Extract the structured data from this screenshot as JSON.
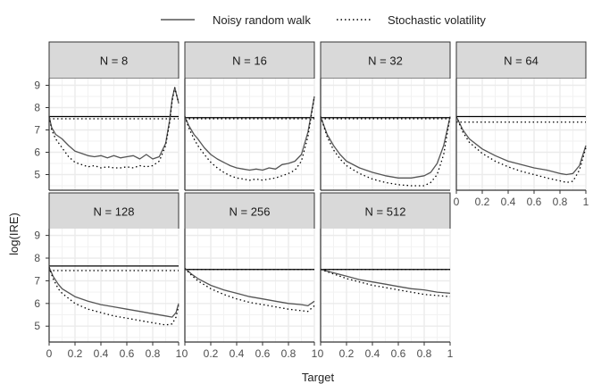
{
  "chart_data": {
    "type": "line",
    "xlabel": "Target",
    "ylabel": "log(IRE)",
    "xlim": [
      0,
      1
    ],
    "ylim": [
      4.3,
      9.3
    ],
    "x_ticks": [
      0,
      0.2,
      0.4,
      0.6,
      0.8,
      1
    ],
    "x_tick_labels": [
      "0",
      "0.2",
      "0.4",
      "0.6",
      "0.8",
      "1"
    ],
    "y_ticks": [
      5,
      6,
      7,
      8,
      9
    ],
    "y_tick_labels": [
      "5",
      "6",
      "7",
      "8",
      "9"
    ],
    "grid": true,
    "legend": {
      "position": "top",
      "entries": [
        {
          "label": "Noisy random walk",
          "style": "solid"
        },
        {
          "label": "Stochastic volatility",
          "style": "dotted"
        }
      ]
    },
    "colors": {
      "noisy": "#555555",
      "stoch": "#000000",
      "reference": "#000000",
      "strip": "#d9d9d9",
      "grid": "#ebebeb"
    },
    "facets": [
      {
        "label": "N = 8",
        "reference": 7.6,
        "reference_dotted": 7.5,
        "series": [
          {
            "name": "Noisy random walk",
            "x": [
              0,
              0.02,
              0.05,
              0.1,
              0.15,
              0.2,
              0.25,
              0.3,
              0.35,
              0.4,
              0.45,
              0.5,
              0.55,
              0.6,
              0.65,
              0.7,
              0.75,
              0.8,
              0.85,
              0.9,
              0.93,
              0.95,
              0.97,
              1.0
            ],
            "y": [
              7.6,
              7.1,
              6.8,
              6.6,
              6.3,
              6.05,
              5.95,
              5.85,
              5.8,
              5.85,
              5.75,
              5.85,
              5.75,
              5.8,
              5.85,
              5.7,
              5.9,
              5.7,
              5.8,
              6.4,
              7.4,
              8.4,
              8.9,
              8.2
            ]
          },
          {
            "name": "Stochastic volatility",
            "x": [
              0,
              0.02,
              0.05,
              0.1,
              0.15,
              0.2,
              0.25,
              0.3,
              0.35,
              0.4,
              0.45,
              0.5,
              0.55,
              0.6,
              0.65,
              0.7,
              0.75,
              0.8,
              0.85,
              0.9,
              0.93,
              0.95,
              0.97,
              1.0
            ],
            "y": [
              7.6,
              7.0,
              6.6,
              6.2,
              5.8,
              5.55,
              5.45,
              5.35,
              5.4,
              5.3,
              5.35,
              5.3,
              5.3,
              5.35,
              5.3,
              5.4,
              5.35,
              5.4,
              5.6,
              6.3,
              7.3,
              8.3,
              8.9,
              8.2
            ]
          }
        ]
      },
      {
        "label": "N = 16",
        "reference": 7.55,
        "reference_dotted": 7.5,
        "series": [
          {
            "name": "Noisy random walk",
            "x": [
              0,
              0.03,
              0.07,
              0.1,
              0.15,
              0.2,
              0.25,
              0.3,
              0.35,
              0.4,
              0.45,
              0.5,
              0.55,
              0.6,
              0.65,
              0.7,
              0.75,
              0.8,
              0.85,
              0.9,
              0.95,
              1.0
            ],
            "y": [
              7.6,
              7.2,
              6.8,
              6.6,
              6.2,
              5.9,
              5.7,
              5.55,
              5.4,
              5.3,
              5.25,
              5.2,
              5.25,
              5.2,
              5.3,
              5.25,
              5.45,
              5.5,
              5.6,
              5.9,
              6.9,
              8.5
            ]
          },
          {
            "name": "Stochastic volatility",
            "x": [
              0,
              0.03,
              0.07,
              0.1,
              0.15,
              0.2,
              0.25,
              0.3,
              0.35,
              0.4,
              0.45,
              0.5,
              0.55,
              0.6,
              0.65,
              0.7,
              0.75,
              0.8,
              0.85,
              0.9,
              0.95,
              1.0
            ],
            "y": [
              7.6,
              7.1,
              6.6,
              6.3,
              5.9,
              5.55,
              5.3,
              5.1,
              4.95,
              4.85,
              4.8,
              4.75,
              4.8,
              4.75,
              4.8,
              4.85,
              4.95,
              5.05,
              5.2,
              5.6,
              6.7,
              8.5
            ]
          }
        ]
      },
      {
        "label": "N = 32",
        "reference": 7.55,
        "reference_dotted": 7.5,
        "series": [
          {
            "name": "Noisy random walk",
            "x": [
              0,
              0.05,
              0.1,
              0.15,
              0.2,
              0.3,
              0.4,
              0.5,
              0.6,
              0.7,
              0.8,
              0.85,
              0.9,
              0.95,
              1.0
            ],
            "y": [
              7.6,
              6.8,
              6.3,
              5.9,
              5.6,
              5.3,
              5.1,
              4.95,
              4.85,
              4.85,
              4.95,
              5.1,
              5.5,
              6.3,
              7.6
            ]
          },
          {
            "name": "Stochastic volatility",
            "x": [
              0,
              0.05,
              0.1,
              0.15,
              0.2,
              0.3,
              0.4,
              0.5,
              0.6,
              0.7,
              0.8,
              0.85,
              0.9,
              0.95,
              1.0
            ],
            "y": [
              7.6,
              6.7,
              6.1,
              5.7,
              5.4,
              5.05,
              4.8,
              4.65,
              4.55,
              4.5,
              4.5,
              4.65,
              5.0,
              5.9,
              7.6
            ]
          }
        ]
      },
      {
        "label": "N = 64",
        "reference": 7.6,
        "reference_dotted": 7.35,
        "series": [
          {
            "name": "Noisy random walk",
            "x": [
              0,
              0.05,
              0.1,
              0.2,
              0.3,
              0.4,
              0.5,
              0.6,
              0.7,
              0.8,
              0.85,
              0.9,
              0.95,
              1.0
            ],
            "y": [
              7.6,
              7.0,
              6.6,
              6.15,
              5.85,
              5.6,
              5.45,
              5.3,
              5.2,
              5.05,
              5.0,
              5.05,
              5.4,
              6.3
            ]
          },
          {
            "name": "Stochastic volatility",
            "x": [
              0,
              0.05,
              0.1,
              0.2,
              0.3,
              0.4,
              0.5,
              0.6,
              0.7,
              0.8,
              0.85,
              0.9,
              0.95,
              1.0
            ],
            "y": [
              7.6,
              6.9,
              6.45,
              5.95,
              5.6,
              5.35,
              5.15,
              5.0,
              4.85,
              4.72,
              4.65,
              4.7,
              5.2,
              6.2
            ]
          }
        ]
      },
      {
        "label": "N = 128",
        "reference": 7.65,
        "reference_dotted": 7.45,
        "series": [
          {
            "name": "Noisy random walk",
            "x": [
              0,
              0.03,
              0.07,
              0.1,
              0.2,
              0.3,
              0.4,
              0.5,
              0.6,
              0.7,
              0.8,
              0.9,
              0.95,
              0.98,
              1.0
            ],
            "y": [
              7.6,
              7.2,
              6.85,
              6.65,
              6.3,
              6.1,
              5.95,
              5.85,
              5.75,
              5.65,
              5.55,
              5.45,
              5.4,
              5.6,
              6.0
            ]
          },
          {
            "name": "Stochastic volatility",
            "x": [
              0,
              0.03,
              0.07,
              0.1,
              0.2,
              0.3,
              0.4,
              0.5,
              0.6,
              0.7,
              0.8,
              0.9,
              0.95,
              0.98,
              1.0
            ],
            "y": [
              7.6,
              7.1,
              6.65,
              6.45,
              6.0,
              5.75,
              5.6,
              5.45,
              5.35,
              5.25,
              5.15,
              5.05,
              5.1,
              5.4,
              5.9
            ]
          }
        ]
      },
      {
        "label": "N = 256",
        "reference": 7.5,
        "reference_dotted": 7.5,
        "series": [
          {
            "name": "Noisy random walk",
            "x": [
              0,
              0.05,
              0.1,
              0.2,
              0.3,
              0.4,
              0.5,
              0.6,
              0.7,
              0.8,
              0.9,
              0.95,
              1.0
            ],
            "y": [
              7.55,
              7.3,
              7.1,
              6.8,
              6.6,
              6.45,
              6.3,
              6.2,
              6.1,
              6.0,
              5.95,
              5.9,
              6.1
            ]
          },
          {
            "name": "Stochastic volatility",
            "x": [
              0,
              0.05,
              0.1,
              0.2,
              0.3,
              0.4,
              0.5,
              0.6,
              0.7,
              0.8,
              0.9,
              0.95,
              1.0
            ],
            "y": [
              7.55,
              7.25,
              7.0,
              6.65,
              6.4,
              6.2,
              6.05,
              5.95,
              5.85,
              5.75,
              5.68,
              5.65,
              5.9
            ]
          }
        ]
      },
      {
        "label": "N = 512",
        "reference": 7.5,
        "reference_dotted": 7.5,
        "series": [
          {
            "name": "Noisy random walk",
            "x": [
              0,
              0.1,
              0.2,
              0.3,
              0.4,
              0.5,
              0.6,
              0.7,
              0.8,
              0.9,
              1.0
            ],
            "y": [
              7.5,
              7.35,
              7.2,
              7.05,
              6.95,
              6.85,
              6.75,
              6.65,
              6.6,
              6.5,
              6.45
            ]
          },
          {
            "name": "Stochastic volatility",
            "x": [
              0,
              0.1,
              0.2,
              0.3,
              0.4,
              0.5,
              0.6,
              0.7,
              0.8,
              0.9,
              1.0
            ],
            "y": [
              7.5,
              7.3,
              7.1,
              6.95,
              6.8,
              6.7,
              6.6,
              6.5,
              6.4,
              6.35,
              6.3
            ]
          }
        ]
      }
    ]
  }
}
